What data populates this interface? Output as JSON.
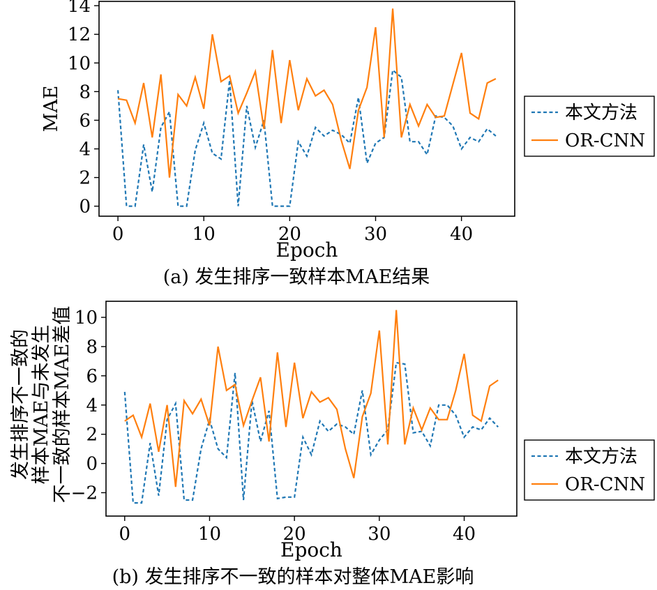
{
  "figure": {
    "caption_a": "(a) 发生排序一致样本MAE结果",
    "caption_b": "(b) 发生排序不一致的样本对整体MAE影响"
  },
  "chart_data": [
    {
      "type": "line",
      "xlabel": "Epoch",
      "ylabel": "MAE",
      "xlim": [
        -2.2,
        46.2
      ],
      "ylim": [
        -0.7,
        14.3
      ],
      "xticks": [
        0,
        10,
        20,
        30,
        40
      ],
      "yticks": [
        0,
        2,
        4,
        6,
        8,
        10,
        12,
        14
      ],
      "grid": false,
      "legend": "right-outside",
      "x": [
        0,
        1,
        2,
        3,
        4,
        5,
        6,
        7,
        8,
        9,
        10,
        11,
        12,
        13,
        14,
        15,
        16,
        17,
        18,
        19,
        20,
        21,
        22,
        23,
        24,
        25,
        26,
        27,
        28,
        29,
        30,
        31,
        32,
        33,
        34,
        35,
        36,
        37,
        38,
        39,
        40,
        41,
        42,
        43,
        44
      ],
      "series": [
        {
          "name": "本文方法",
          "style": "dashed",
          "color": "#1f77b4",
          "values": [
            8.1,
            0.0,
            0.0,
            4.3,
            1.0,
            5.5,
            6.6,
            0.0,
            0.0,
            3.9,
            5.8,
            3.7,
            3.3,
            8.8,
            0.0,
            7.0,
            4.1,
            6.0,
            0.0,
            0.0,
            0.0,
            4.5,
            3.5,
            5.5,
            4.9,
            5.3,
            5.0,
            4.4,
            7.6,
            3.0,
            4.4,
            4.8,
            9.5,
            9.0,
            4.5,
            4.5,
            3.6,
            6.3,
            6.2,
            5.6,
            4.0,
            4.8,
            4.5,
            5.4,
            4.9
          ]
        },
        {
          "name": "OR-CNN",
          "style": "solid",
          "color": "#ff7f0e",
          "values": [
            7.5,
            7.4,
            5.8,
            8.6,
            4.8,
            9.2,
            2.0,
            7.8,
            7.0,
            9.0,
            6.8,
            12.0,
            8.7,
            9.1,
            6.5,
            7.9,
            9.4,
            5.4,
            10.9,
            5.8,
            10.2,
            6.7,
            8.9,
            7.7,
            8.1,
            7.1,
            4.6,
            2.6,
            6.7,
            8.3,
            12.5,
            4.8,
            13.8,
            4.8,
            7.1,
            5.6,
            7.1,
            6.2,
            6.3,
            8.5,
            10.7,
            6.5,
            6.1,
            8.6,
            8.9
          ]
        }
      ]
    },
    {
      "type": "line",
      "xlabel": "Epoch",
      "ylabel": "发生排序不一致的\n样本MAE与未发生\n不一致的样本MAE差值",
      "xlim": [
        -2.2,
        46.2
      ],
      "ylim": [
        -3.6,
        11.1
      ],
      "xticks": [
        0,
        10,
        20,
        30,
        40
      ],
      "yticks": [
        -2,
        0,
        2,
        4,
        6,
        8,
        10
      ],
      "grid": false,
      "legend": "right-outside",
      "x": [
        0,
        1,
        2,
        3,
        4,
        5,
        6,
        7,
        8,
        9,
        10,
        11,
        12,
        13,
        14,
        15,
        16,
        17,
        18,
        19,
        20,
        21,
        22,
        23,
        24,
        25,
        26,
        27,
        28,
        29,
        30,
        31,
        32,
        33,
        34,
        35,
        36,
        37,
        38,
        39,
        40,
        41,
        42,
        43,
        44
      ],
      "series": [
        {
          "name": "本文方法",
          "style": "dashed",
          "color": "#1f77b4",
          "values": [
            4.9,
            -2.7,
            -2.7,
            1.4,
            -2.2,
            3.0,
            4.1,
            -2.5,
            -2.5,
            1.0,
            3.0,
            1.0,
            0.4,
            6.2,
            -2.5,
            4.3,
            1.5,
            3.6,
            -2.4,
            -2.3,
            -2.3,
            1.8,
            0.6,
            2.9,
            2.2,
            2.7,
            2.5,
            2.0,
            5.0,
            0.6,
            1.6,
            2.3,
            6.9,
            6.8,
            2.1,
            2.2,
            1.2,
            4.0,
            4.0,
            3.3,
            1.8,
            2.5,
            2.3,
            3.1,
            2.5
          ]
        },
        {
          "name": "OR-CNN",
          "style": "solid",
          "color": "#ff7f0e",
          "values": [
            2.9,
            3.3,
            1.8,
            4.1,
            0.8,
            4.0,
            -1.6,
            4.3,
            3.4,
            4.4,
            2.6,
            8.0,
            5.0,
            5.4,
            2.6,
            4.3,
            5.9,
            1.5,
            7.6,
            2.5,
            6.9,
            3.1,
            4.9,
            4.2,
            4.5,
            3.7,
            1.0,
            -1.0,
            3.2,
            4.8,
            9.1,
            1.3,
            10.5,
            1.3,
            3.8,
            2.3,
            3.8,
            3.0,
            3.0,
            5.0,
            7.5,
            3.3,
            2.9,
            5.3,
            5.7
          ]
        }
      ]
    }
  ]
}
